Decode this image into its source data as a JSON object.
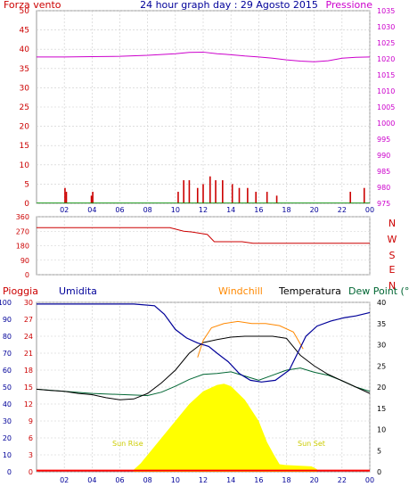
{
  "chart_data": [
    {
      "type": "line",
      "title": "24 hour graph day : 29 Agosto 2015",
      "left_label": "Forza vento",
      "right_label": "Pressione",
      "x_tick_labels": [
        "02",
        "04",
        "06",
        "08",
        "10",
        "12",
        "14",
        "16",
        "18",
        "20",
        "22",
        "00"
      ],
      "y_left_ticks": [
        0,
        5,
        10,
        15,
        20,
        25,
        30,
        35,
        40,
        45,
        50
      ],
      "y_right_ticks": [
        975,
        980,
        985,
        990,
        995,
        1000,
        1005,
        1010,
        1015,
        1020,
        1025,
        1030,
        1035
      ],
      "ylim_left": [
        0,
        50
      ],
      "ylim_right": [
        975,
        1035
      ],
      "series": [
        {
          "name": "Pressione",
          "color": "#cc00cc",
          "x_hours": [
            0,
            2,
            4,
            6,
            8,
            10,
            11,
            12,
            13,
            14,
            15,
            16,
            17,
            18,
            19,
            20,
            21,
            22,
            23,
            24
          ],
          "values": [
            1020.6,
            1020.6,
            1020.7,
            1020.8,
            1021.1,
            1021.6,
            1022.0,
            1022.1,
            1021.6,
            1021.3,
            1020.9,
            1020.6,
            1020.2,
            1019.7,
            1019.3,
            1019.1,
            1019.4,
            1020.2,
            1020.5,
            1020.6
          ]
        },
        {
          "name": "Forza vento",
          "color": "#cc0000",
          "x_hours": [
            2.05,
            2.15,
            3.95,
            4.05,
            10.2,
            10.6,
            11.0,
            11.6,
            12.0,
            12.5,
            12.9,
            13.4,
            14.1,
            14.6,
            15.2,
            15.8,
            16.6,
            17.3,
            22.6,
            23.6
          ],
          "values": [
            4,
            3,
            2,
            3,
            3,
            6,
            6,
            4,
            5,
            7,
            6,
            6,
            5,
            4,
            4,
            3,
            3,
            2,
            3,
            4
          ]
        }
      ]
    },
    {
      "type": "line",
      "right_labels": [
        "N",
        "W",
        "S",
        "E",
        "N"
      ],
      "y_ticks": [
        0,
        90,
        180,
        270,
        360
      ],
      "ylim": [
        0,
        360
      ],
      "series": [
        {
          "name": "Direzione vento",
          "color": "#cc0000",
          "x_hours": [
            0,
            9.6,
            10.6,
            11.2,
            12.3,
            12.8,
            14.8,
            15.6,
            24
          ],
          "values": [
            292,
            292,
            270,
            265,
            250,
            205,
            205,
            195,
            195
          ]
        }
      ]
    },
    {
      "type": "line",
      "labels": {
        "pioggia": "Pioggia",
        "umidita": "Umidita",
        "windchill": "Windchill",
        "temperatura": "Temperatura",
        "dewpoint": "Dew Point (°C"
      },
      "annotations": {
        "sunrise": "Sun Rise",
        "sunset": "Sun Set"
      },
      "y_umidita_ticks": [
        0,
        10,
        20,
        30,
        40,
        50,
        60,
        70,
        80,
        90,
        100
      ],
      "y_temp_ticks": [
        0,
        3,
        6,
        9,
        12,
        15,
        18,
        21,
        24,
        27,
        30
      ],
      "y_right_ticks": [
        0,
        5,
        10,
        15,
        20,
        25,
        30,
        35,
        40
      ],
      "ylim_umidita": [
        0,
        100
      ],
      "ylim_right": [
        0,
        40
      ],
      "series": [
        {
          "name": "Umidita",
          "color": "#000099",
          "x_hours": [
            0,
            3,
            7,
            8.5,
            9.2,
            10,
            10.8,
            11.6,
            12.4,
            13.0,
            13.8,
            14.6,
            15.4,
            16.2,
            17.2,
            18.2,
            18.8,
            19.4,
            20.2,
            21.2,
            22.2,
            23,
            24
          ],
          "values": [
            99,
            99,
            99,
            98,
            93,
            84,
            79,
            76,
            74,
            70,
            65,
            58,
            54,
            53,
            54,
            60,
            70,
            80,
            86,
            89,
            91,
            92,
            94
          ]
        },
        {
          "name": "Windchill",
          "color": "#ff8800",
          "x_hours": [
            11.6,
            12.0,
            12.6,
            13.5,
            14.5,
            15.5,
            16.5,
            17.5,
            18.5,
            19.2
          ],
          "values": [
            27,
            31,
            34,
            35,
            35.5,
            35,
            35,
            34.5,
            33,
            29
          ]
        },
        {
          "name": "Temperatura",
          "color": "#000000",
          "x_hours": [
            0,
            1,
            2,
            3,
            4,
            5,
            6,
            7,
            8,
            9,
            10,
            11,
            12,
            13,
            14,
            15,
            16,
            17,
            18,
            19,
            20,
            21,
            22,
            23,
            24
          ],
          "values": [
            19.5,
            19.2,
            19,
            18.5,
            18.2,
            17.5,
            17,
            17.2,
            18.5,
            21,
            24,
            28,
            30.5,
            31.2,
            31.8,
            32,
            32,
            32,
            31.5,
            27.5,
            25,
            23,
            21.5,
            20,
            18.5
          ]
        },
        {
          "name": "Dew Point",
          "color": "#006633",
          "x_hours": [
            0,
            4,
            8,
            9,
            10,
            11,
            12,
            13,
            14,
            15,
            16,
            17,
            18,
            19,
            20,
            21,
            22,
            23,
            24
          ],
          "values": [
            19.5,
            18.5,
            18,
            18.8,
            20.2,
            21.8,
            23,
            23.2,
            23.6,
            22.6,
            21.6,
            22.8,
            24,
            24.5,
            23.5,
            22.8,
            21.5,
            20,
            19
          ]
        },
        {
          "name": "Solar",
          "color": "#ffff00",
          "x_hours": [
            7.0,
            7.5,
            8,
            9,
            10,
            11,
            12,
            13,
            13.5,
            14,
            15,
            16,
            16.6,
            17.1,
            17.5,
            17.9,
            19.8,
            20.2
          ],
          "values": [
            0.5,
            2,
            4,
            8,
            12,
            16,
            19,
            20.5,
            20.8,
            20.2,
            17,
            12,
            7,
            4,
            1.8,
            1.6,
            1.3,
            0.6
          ]
        },
        {
          "name": "Pioggia",
          "color": "#ff0000",
          "x_hours": [
            0,
            24
          ],
          "values": [
            0.3,
            0.3
          ]
        }
      ]
    }
  ]
}
